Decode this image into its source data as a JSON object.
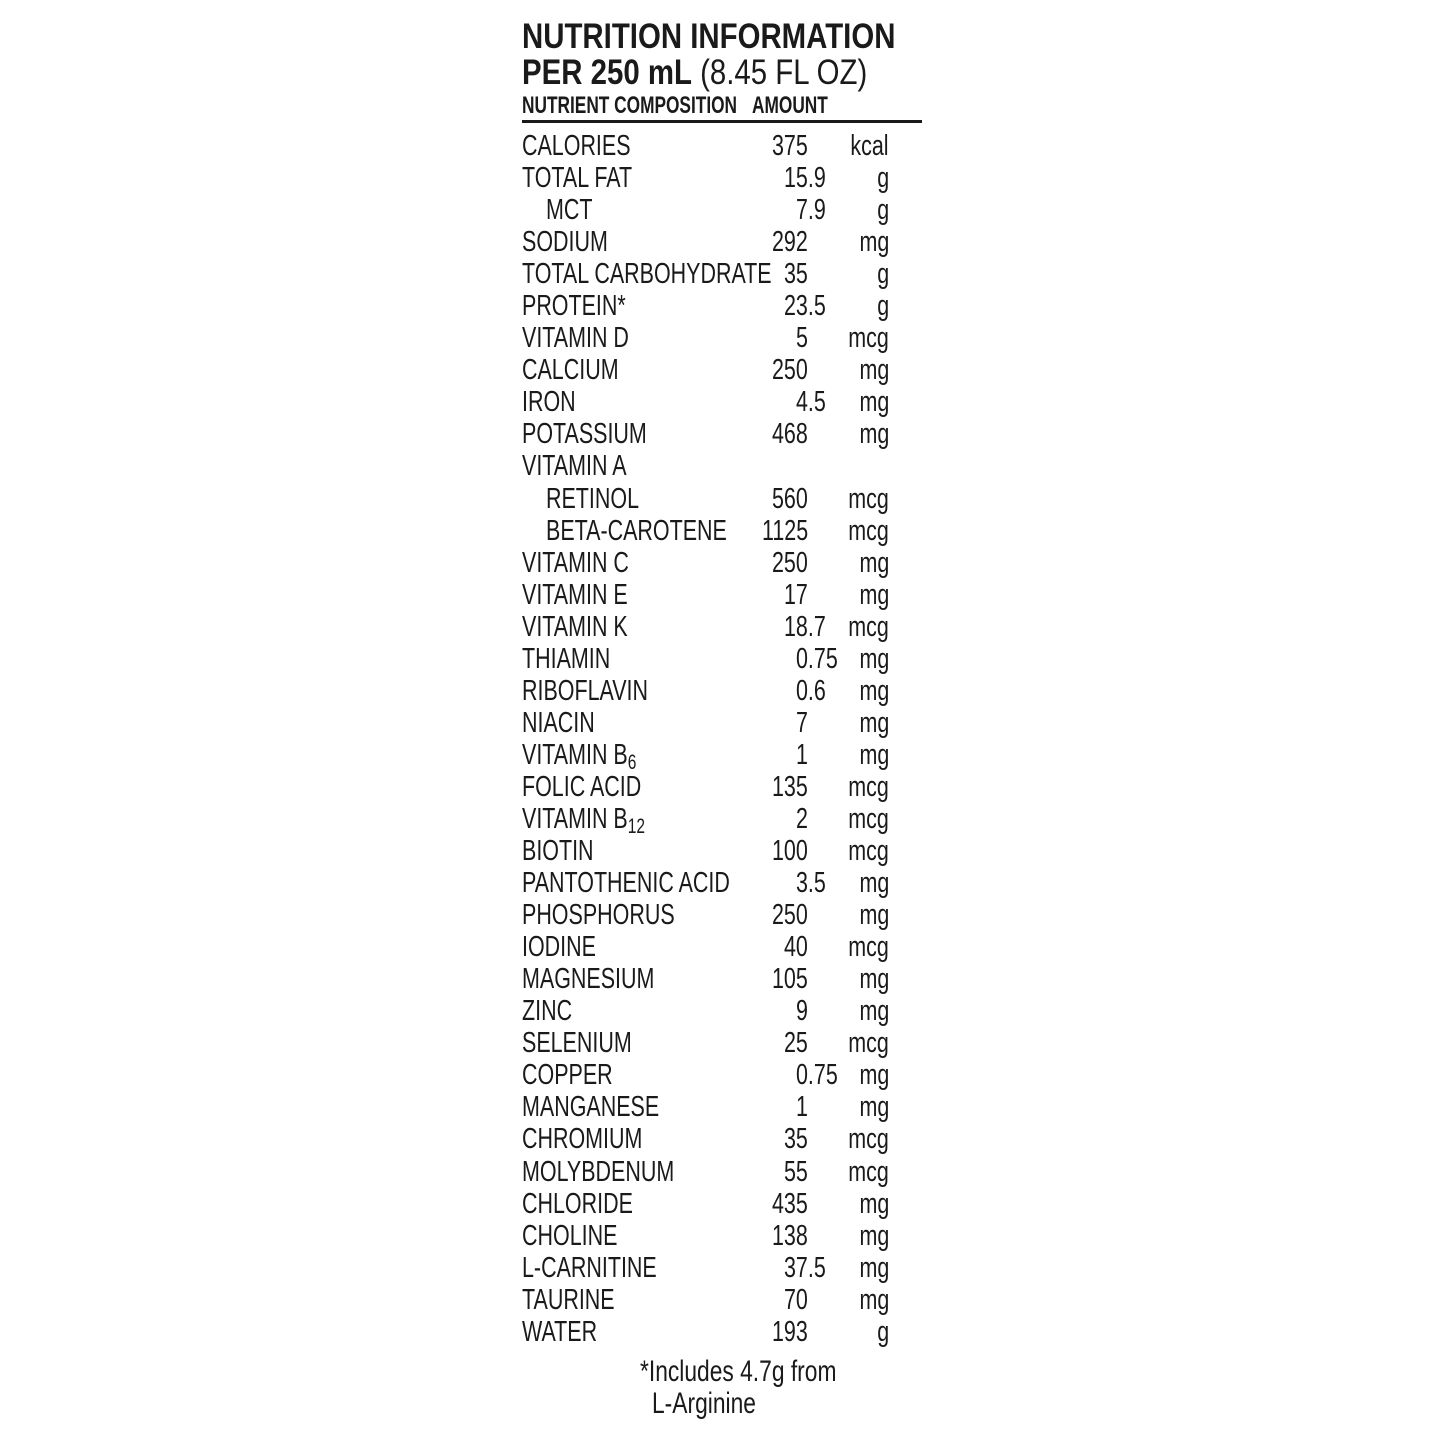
{
  "header": {
    "title": "NUTRITION INFORMATION",
    "serving_bold": "PER 250 mL",
    "serving_regular": "(8.45 FL OZ)",
    "col_nutrient": "NUTRIENT COMPOSITION",
    "col_amount": "AMOUNT"
  },
  "rows": [
    {
      "name": "CALORIES",
      "amount": "375",
      "unit": "kcal"
    },
    {
      "name": "TOTAL FAT",
      "amount": "15.9",
      "unit": "g"
    },
    {
      "name": "MCT",
      "amount": "7.9",
      "unit": "g",
      "indent": true
    },
    {
      "name": "SODIUM",
      "amount": "292",
      "unit": "mg"
    },
    {
      "name": "TOTAL CARBOHYDRATE",
      "amount": "35",
      "unit": "g"
    },
    {
      "name": "PROTEIN*",
      "amount": "23.5",
      "unit": "g"
    },
    {
      "name": "VITAMIN D",
      "amount": "5",
      "unit": "mcg"
    },
    {
      "name": "CALCIUM",
      "amount": "250",
      "unit": "mg"
    },
    {
      "name": "IRON",
      "amount": "4.5",
      "unit": "mg"
    },
    {
      "name": "POTASSIUM",
      "amount": "468",
      "unit": "mg"
    },
    {
      "name": "VITAMIN A",
      "amount": "",
      "unit": ""
    },
    {
      "name": "RETINOL",
      "amount": "560",
      "unit": "mcg",
      "indent": true
    },
    {
      "name": "BETA-CAROTENE",
      "amount": "1125",
      "unit": "mcg",
      "indent": true
    },
    {
      "name": "VITAMIN C",
      "amount": "250",
      "unit": "mg"
    },
    {
      "name": "VITAMIN E",
      "amount": "17",
      "unit": "mg"
    },
    {
      "name": "VITAMIN K",
      "amount": "18.7",
      "unit": "mcg"
    },
    {
      "name": "THIAMIN",
      "amount": "0.75",
      "unit": "mg"
    },
    {
      "name": "RIBOFLAVIN",
      "amount": "0.6",
      "unit": "mg"
    },
    {
      "name": "NIACIN",
      "amount": "7",
      "unit": "mg"
    },
    {
      "name": "VITAMIN B",
      "sub": "6",
      "amount": "1",
      "unit": "mg"
    },
    {
      "name": "FOLIC ACID",
      "amount": "135",
      "unit": "mcg"
    },
    {
      "name": "VITAMIN B",
      "sub": "12",
      "amount": "2",
      "unit": "mcg"
    },
    {
      "name": "BIOTIN",
      "amount": "100",
      "unit": "mcg"
    },
    {
      "name": "PANTOTHENIC ACID",
      "amount": "3.5",
      "unit": "mg"
    },
    {
      "name": "PHOSPHORUS",
      "amount": "250",
      "unit": "mg"
    },
    {
      "name": "IODINE",
      "amount": "40",
      "unit": "mcg"
    },
    {
      "name": "MAGNESIUM",
      "amount": "105",
      "unit": "mg"
    },
    {
      "name": "ZINC",
      "amount": "9",
      "unit": "mg"
    },
    {
      "name": "SELENIUM",
      "amount": "25",
      "unit": "mcg"
    },
    {
      "name": "COPPER",
      "amount": "0.75",
      "unit": "mg"
    },
    {
      "name": "MANGANESE",
      "amount": "1",
      "unit": "mg"
    },
    {
      "name": "CHROMIUM",
      "amount": "35",
      "unit": "mcg"
    },
    {
      "name": "MOLYBDENUM",
      "amount": "55",
      "unit": "mcg"
    },
    {
      "name": "CHLORIDE",
      "amount": "435",
      "unit": "mg"
    },
    {
      "name": "CHOLINE",
      "amount": "138",
      "unit": "mg"
    },
    {
      "name": "L-CARNITINE",
      "amount": "37.5",
      "unit": "mg"
    },
    {
      "name": "TAURINE",
      "amount": "70",
      "unit": "mg"
    },
    {
      "name": "WATER",
      "amount": "193",
      "unit": "g"
    }
  ],
  "footnote": {
    "line1": "*Includes 4.7g from",
    "line2": "L-Arginine"
  }
}
